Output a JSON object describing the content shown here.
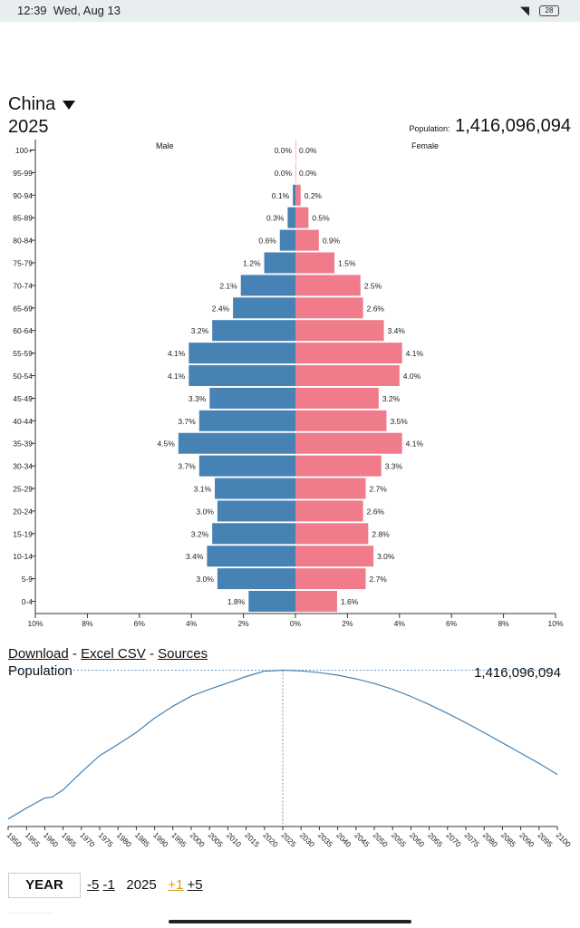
{
  "status": {
    "time": "12:39",
    "date": "Wed, Aug 13",
    "battery": "28"
  },
  "header": {
    "country": "China",
    "year": "2025",
    "population_label": "Population:",
    "population": "1,416,096,094"
  },
  "chart_data": [
    {
      "type": "bar",
      "orientation": "horizontal-pyramid",
      "left_label": "Male",
      "right_label": "Female",
      "categories": [
        "100+",
        "95-99",
        "90-94",
        "85-89",
        "80-84",
        "75-79",
        "70-74",
        "65-69",
        "60-64",
        "55-59",
        "50-54",
        "45-49",
        "40-44",
        "35-39",
        "30-34",
        "25-29",
        "20-24",
        "15-19",
        "10-14",
        "5-9",
        "0-4"
      ],
      "series": [
        {
          "name": "Male",
          "values": [
            0.0,
            0.0,
            0.1,
            0.3,
            0.6,
            1.2,
            2.1,
            2.4,
            3.2,
            4.1,
            4.1,
            3.3,
            3.7,
            4.5,
            3.7,
            3.1,
            3.0,
            3.2,
            3.4,
            3.0,
            1.8
          ],
          "labels": [
            "0.0%",
            "0.0%",
            "0.1%",
            "0.3%",
            "0.6%",
            "1.2%",
            "2.1%",
            "2.4%",
            "3.2%",
            "4.1%",
            "4.1%",
            "3.3%",
            "3.7%",
            "4.5%",
            "3.7%",
            "3.1%",
            "3.0%",
            "3.2%",
            "3.4%",
            "3.0%",
            "1.8%"
          ]
        },
        {
          "name": "Female",
          "values": [
            0.0,
            0.0,
            0.2,
            0.5,
            0.9,
            1.5,
            2.5,
            2.6,
            3.4,
            4.1,
            4.0,
            3.2,
            3.5,
            4.1,
            3.3,
            2.7,
            2.6,
            2.8,
            3.0,
            2.7,
            1.6
          ],
          "labels": [
            "0.0%",
            "0.0%",
            "0.2%",
            "0.5%",
            "0.9%",
            "1.5%",
            "2.5%",
            "2.6%",
            "3.4%",
            "4.1%",
            "4.0%",
            "3.2%",
            "3.5%",
            "4.1%",
            "3.3%",
            "2.7%",
            "2.6%",
            "2.8%",
            "3.0%",
            "2.7%",
            "1.6%"
          ]
        }
      ],
      "x_ticks": [
        "10%",
        "8%",
        "6%",
        "4%",
        "2%",
        "0%",
        "2%",
        "4%",
        "6%",
        "8%",
        "10%"
      ],
      "xlim": [
        -10,
        10
      ],
      "colors": {
        "male": "#4682b4",
        "female": "#f07b8a"
      }
    },
    {
      "type": "line",
      "title": "Population",
      "x": [
        1950,
        1955,
        1960,
        1962,
        1965,
        1970,
        1975,
        1980,
        1985,
        1990,
        1995,
        2000,
        2005,
        2010,
        2015,
        2020,
        2022,
        2025,
        2030,
        2035,
        2040,
        2045,
        2050,
        2055,
        2060,
        2065,
        2070,
        2075,
        2080,
        2085,
        2090,
        2095,
        2100
      ],
      "y": [
        544,
        608,
        667,
        672,
        715,
        818,
        916,
        981,
        1051,
        1135,
        1205,
        1264,
        1304,
        1341,
        1379,
        1411,
        1412,
        1416,
        1412,
        1402,
        1387,
        1365,
        1338,
        1304,
        1262,
        1215,
        1163,
        1108,
        1050,
        990,
        930,
        870,
        805
      ],
      "ylim": [
        500,
        1440
      ],
      "x_ticks": [
        "1950",
        "1955",
        "1960",
        "1965",
        "1970",
        "1975",
        "1980",
        "1985",
        "1990",
        "1995",
        "2000",
        "2005",
        "2010",
        "2015",
        "2020",
        "2025",
        "2030",
        "2035",
        "2040",
        "2045",
        "2050",
        "2055",
        "2060",
        "2065",
        "2070",
        "2075",
        "2080",
        "2085",
        "2090",
        "2095",
        "2100"
      ],
      "marker_year": 2025,
      "marker_value_label": "1,416,096,094",
      "color": "#4682b4"
    }
  ],
  "links": {
    "download": "Download",
    "sep1": "-",
    "excel": "Excel CSV",
    "sep2": "-",
    "sources": "Sources"
  },
  "controls": {
    "year_button": "YEAR",
    "minus5": "-5",
    "minus1": "-1",
    "current": "2025",
    "plus1": "+1",
    "plus5": "+5"
  }
}
